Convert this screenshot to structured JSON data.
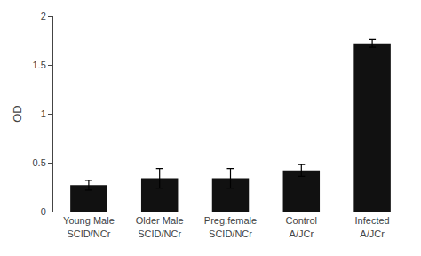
{
  "chart_data": {
    "type": "bar",
    "categories": [
      "Young Male\nSCID/NCr",
      "Older Male\nSCID/NCr",
      "Preg.female\nSCID/NCr",
      "Control\nA/JCr",
      "Infected\nA/JCr"
    ],
    "values": [
      0.27,
      0.34,
      0.34,
      0.42,
      1.72
    ],
    "errors": [
      0.05,
      0.1,
      0.1,
      0.06,
      0.04
    ],
    "color": "#111111",
    "ylabel": "OD",
    "ylim": [
      0,
      2.0
    ],
    "yticks": [
      0,
      0.5,
      1,
      1.5,
      2
    ],
    "grid": false
  }
}
